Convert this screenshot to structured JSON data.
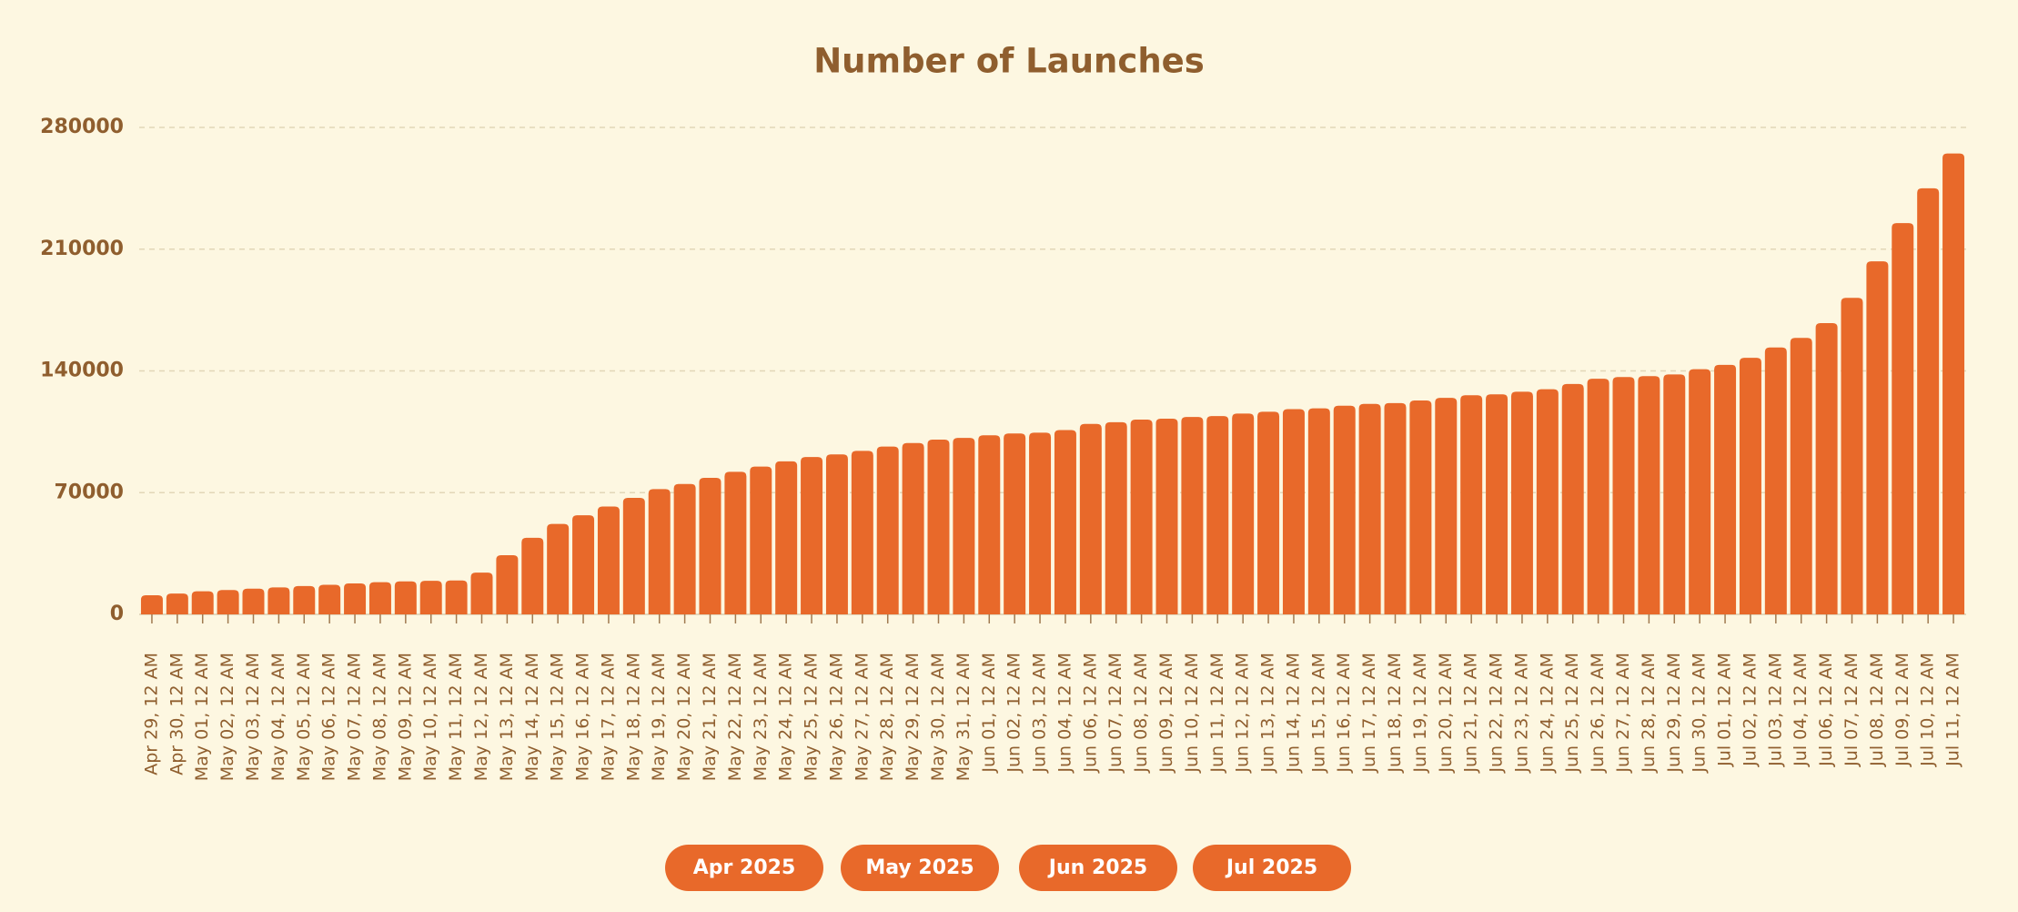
{
  "chart_data": {
    "type": "bar",
    "title": "Number of Launches",
    "categories": [
      "Apr 29, 12 AM",
      "Apr 30, 12 AM",
      "May 01, 12 AM",
      "May 02, 12 AM",
      "May 03, 12 AM",
      "May 04, 12 AM",
      "May 05, 12 AM",
      "May 06, 12 AM",
      "May 07, 12 AM",
      "May 08, 12 AM",
      "May 09, 12 AM",
      "May 10, 12 AM",
      "May 11, 12 AM",
      "May 12, 12 AM",
      "May 13, 12 AM",
      "May 14, 12 AM",
      "May 15, 12 AM",
      "May 16, 12 AM",
      "May 17, 12 AM",
      "May 18, 12 AM",
      "May 19, 12 AM",
      "May 20, 12 AM",
      "May 21, 12 AM",
      "May 22, 12 AM",
      "May 23, 12 AM",
      "May 24, 12 AM",
      "May 25, 12 AM",
      "May 26, 12 AM",
      "May 27, 12 AM",
      "May 28, 12 AM",
      "May 29, 12 AM",
      "May 30, 12 AM",
      "May 31, 12 AM",
      "Jun 01, 12 AM",
      "Jun 02, 12 AM",
      "Jun 03, 12 AM",
      "Jun 04, 12 AM",
      "Jun 06, 12 AM",
      "Jun 07, 12 AM",
      "Jun 08, 12 AM",
      "Jun 09, 12 AM",
      "Jun 10, 12 AM",
      "Jun 11, 12 AM",
      "Jun 12, 12 AM",
      "Jun 13, 12 AM",
      "Jun 14, 12 AM",
      "Jun 15, 12 AM",
      "Jun 16, 12 AM",
      "Jun 17, 12 AM",
      "Jun 18, 12 AM",
      "Jun 19, 12 AM",
      "Jun 20, 12 AM",
      "Jun 21, 12 AM",
      "Jun 22, 12 AM",
      "Jun 23, 12 AM",
      "Jun 24, 12 AM",
      "Jun 25, 12 AM",
      "Jun 26, 12 AM",
      "Jun 27, 12 AM",
      "Jun 28, 12 AM",
      "Jun 29, 12 AM",
      "Jun 30, 12 AM",
      "Jul 01, 12 AM",
      "Jul 02, 12 AM",
      "Jul 03, 12 AM",
      "Jul 04, 12 AM",
      "Jul 06, 12 AM",
      "Jul 07, 12 AM",
      "Jul 08, 12 AM",
      "Jul 09, 12 AM",
      "Jul 10, 12 AM",
      "Jul 11, 12 AM"
    ],
    "values": [
      11000,
      12000,
      13300,
      14000,
      14800,
      15500,
      16300,
      17000,
      17800,
      18500,
      19000,
      19300,
      19500,
      24000,
      34000,
      44000,
      52000,
      57000,
      62000,
      67000,
      72000,
      75000,
      78500,
      82000,
      85000,
      88000,
      90500,
      92000,
      94000,
      96500,
      98500,
      100500,
      101500,
      103000,
      104000,
      104500,
      106000,
      109500,
      110500,
      112000,
      112500,
      113500,
      114000,
      115500,
      116500,
      118000,
      118500,
      120000,
      121000,
      121500,
      123000,
      124500,
      126000,
      126500,
      128000,
      129500,
      132500,
      135500,
      136500,
      137000,
      138000,
      141000,
      143500,
      147500,
      153500,
      159000,
      167500,
      182000,
      203000,
      225000,
      245000,
      265000
    ],
    "color": "#e8692a",
    "ylim": [
      0,
      280000
    ],
    "yticks": [
      0,
      70000,
      140000,
      210000,
      280000
    ],
    "grid": true
  },
  "buttons": [
    "Apr 2025",
    "May 2025",
    "Jun 2025",
    "Jul 2025"
  ]
}
